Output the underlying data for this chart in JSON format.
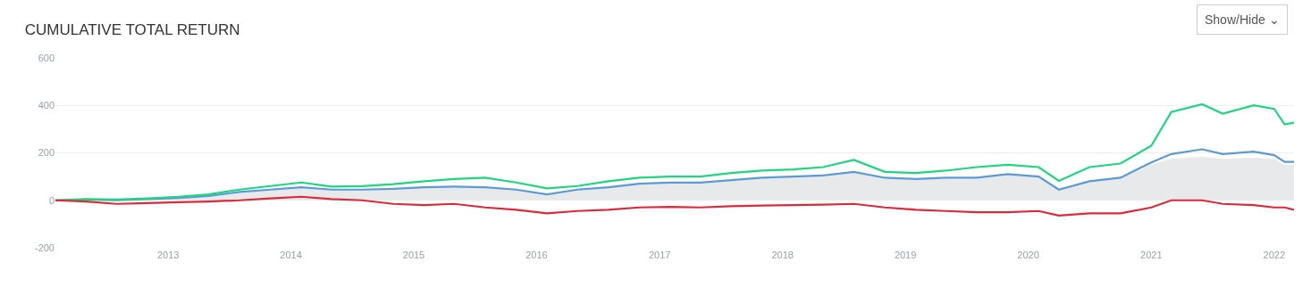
{
  "chart_data": {
    "type": "line",
    "title": "CUMULATIVE TOTAL RETURN",
    "annotations": [
      "Show/Hide ⌄"
    ],
    "x": [
      "2012-02",
      "2012-05",
      "2012-08",
      "2012-11",
      "2013-02",
      "2013-05",
      "2013-08",
      "2013-11",
      "2014-02",
      "2014-05",
      "2014-08",
      "2014-11",
      "2015-02",
      "2015-05",
      "2015-08",
      "2015-11",
      "2016-02",
      "2016-05",
      "2016-08",
      "2016-11",
      "2017-02",
      "2017-05",
      "2017-08",
      "2017-11",
      "2018-02",
      "2018-05",
      "2018-08",
      "2018-11",
      "2019-02",
      "2019-05",
      "2019-08",
      "2019-11",
      "2020-02",
      "2020-04",
      "2020-07",
      "2020-10",
      "2021-01",
      "2021-03",
      "2021-06",
      "2021-08",
      "2021-11",
      "2022-01",
      "2022-02",
      "2022-03"
    ],
    "series": [
      {
        "type": "area",
        "color": "#e8e9eb",
        "values": [
          0,
          3,
          0,
          5,
          10,
          18,
          35,
          45,
          55,
          45,
          45,
          48,
          55,
          58,
          55,
          45,
          25,
          45,
          55,
          70,
          75,
          75,
          85,
          95,
          100,
          105,
          120,
          95,
          90,
          95,
          95,
          110,
          100,
          45,
          80,
          95,
          150,
          175,
          184,
          175,
          180,
          175,
          150,
          150
        ]
      },
      {
        "color": "#5b9bd5",
        "values": [
          0,
          3,
          0,
          5,
          10,
          18,
          35,
          45,
          55,
          45,
          45,
          48,
          55,
          58,
          55,
          45,
          25,
          45,
          55,
          70,
          75,
          75,
          85,
          95,
          100,
          105,
          120,
          95,
          90,
          95,
          95,
          110,
          100,
          45,
          80,
          95,
          160,
          195,
          215,
          195,
          205,
          190,
          162,
          162
        ]
      },
      {
        "color": "#1ed67f",
        "values": [
          0,
          5,
          3,
          8,
          15,
          25,
          45,
          60,
          75,
          58,
          60,
          68,
          80,
          90,
          95,
          75,
          50,
          60,
          80,
          95,
          100,
          100,
          115,
          125,
          130,
          140,
          170,
          120,
          115,
          125,
          140,
          150,
          140,
          82,
          140,
          155,
          230,
          372,
          405,
          365,
          400,
          385,
          320,
          327
        ]
      },
      {
        "color": "#dc2a3a",
        "values": [
          0,
          -5,
          -15,
          -12,
          -8,
          -5,
          0,
          8,
          15,
          5,
          0,
          -15,
          -20,
          -15,
          -30,
          -40,
          -55,
          -45,
          -40,
          -30,
          -28,
          -30,
          -25,
          -22,
          -20,
          -18,
          -15,
          -30,
          -40,
          -45,
          -50,
          -50,
          -45,
          -64,
          -55,
          -55,
          -30,
          0,
          0,
          -15,
          -20,
          -30,
          -30,
          -40
        ]
      }
    ],
    "xlim": [
      "2012-02",
      "2022-03"
    ],
    "xticks": [
      {
        "value": "2013",
        "label": "2013"
      },
      {
        "value": "2014",
        "label": "2014"
      },
      {
        "value": "2015",
        "label": "2015"
      },
      {
        "value": "2016",
        "label": "2016"
      },
      {
        "value": "2017",
        "label": "2017"
      },
      {
        "value": "2018",
        "label": "2018"
      },
      {
        "value": "2019",
        "label": "2019"
      },
      {
        "value": "2020",
        "label": "2020"
      },
      {
        "value": "2021",
        "label": "2021"
      },
      {
        "value": "2022",
        "label": "2022"
      }
    ],
    "ylim": [
      -200,
      600
    ],
    "yticks": [
      -200,
      0,
      200,
      400,
      600
    ],
    "grid": "y",
    "legend": false
  }
}
